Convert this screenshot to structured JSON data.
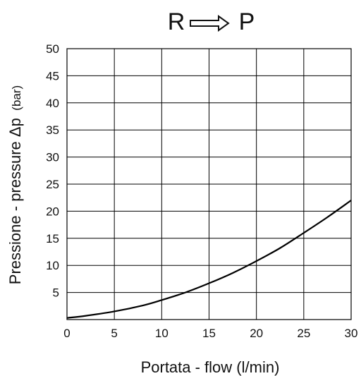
{
  "chart_data": {
    "type": "line",
    "title": {
      "from": "R",
      "to": "P"
    },
    "xlabel": "Portata - flow (l/min)",
    "ylabel": "Pressione - pressure Δp",
    "ylabel_unit": "(bar)",
    "xlim": [
      0,
      30
    ],
    "ylim": [
      0,
      50
    ],
    "x_ticks": [
      "0",
      "5",
      "10",
      "15",
      "20",
      "25",
      "30"
    ],
    "y_ticks": [
      "5",
      "10",
      "15",
      "20",
      "25",
      "30",
      "35",
      "40",
      "45",
      "50"
    ],
    "grid": true,
    "series": [
      {
        "x": [
          0,
          2,
          5,
          8,
          10,
          12.5,
          15,
          17.5,
          20,
          22.5,
          25,
          27.5,
          30
        ],
        "y": [
          0.3,
          0.7,
          1.5,
          2.6,
          3.6,
          5.0,
          6.7,
          8.6,
          10.8,
          13.2,
          16.0,
          18.9,
          22.0
        ]
      }
    ],
    "colors": {
      "line": "#000000",
      "grid": "#000000",
      "background": "#ffffff"
    }
  }
}
